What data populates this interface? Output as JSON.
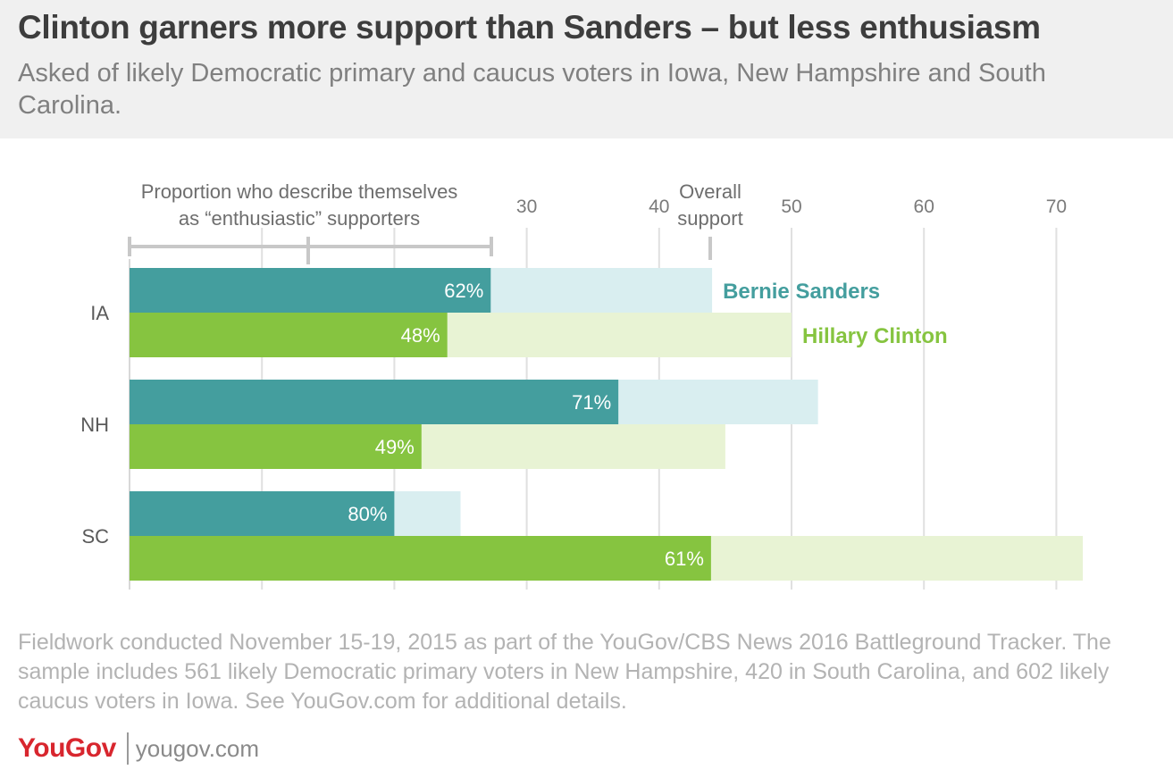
{
  "header": {
    "title": "Clinton garners more support than Sanders – but less enthusiasm",
    "subtitle": "Asked of likely Democratic primary and caucus voters in Iowa, New Hampshire and South Carolina."
  },
  "chart_data": {
    "type": "bar",
    "orientation": "horizontal",
    "categories": [
      "IA",
      "NH",
      "SC"
    ],
    "x_ticks": [
      30,
      40,
      50,
      60,
      70
    ],
    "xlim": [
      0,
      72
    ],
    "grid": true,
    "series": [
      {
        "name": "Bernie Sanders",
        "values": [
          44,
          52,
          25
        ],
        "enthusiastic_share_labels": [
          "62%",
          "71%",
          "80%"
        ],
        "color": "#449e9e",
        "light_color": "#d9eef0"
      },
      {
        "name": "Hillary Clinton",
        "values": [
          50,
          45,
          72
        ],
        "enthusiastic_share_labels": [
          "48%",
          "49%",
          "61%"
        ],
        "color": "#86c440",
        "light_color": "#e8f3d4"
      }
    ],
    "annotations": {
      "enthusiasm_label": [
        "Proportion who describe themselves",
        "as “enthusiastic” supporters"
      ],
      "overall_label": [
        "Overall",
        "support"
      ]
    }
  },
  "footer": {
    "note": "Fieldwork conducted November 15-19, 2015 as part of the YouGov/CBS News 2016 Battleground Tracker. The sample includes 561 likely Democratic primary voters in New Hampshire, 420 in South Carolina, and 602 likely caucus voters in Iowa. See YouGov.com for additional details.",
    "logo": "YouGov",
    "site": "yougov.com"
  }
}
